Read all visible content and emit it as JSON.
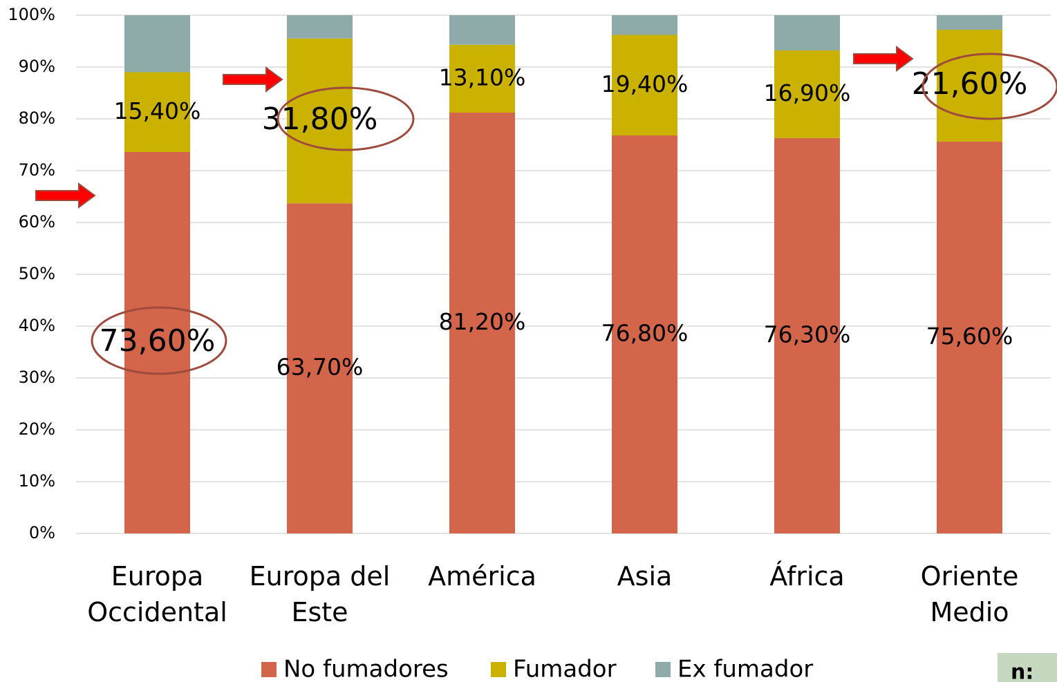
{
  "chart_data": {
    "type": "stacked-bar",
    "categories": [
      "Europa\nOccidental",
      "Europa del\nEste",
      "América",
      "Asia",
      "África",
      "Oriente\nMedio"
    ],
    "series": [
      {
        "name": "No fumadores",
        "color": "#d2654a",
        "values": [
          73.6,
          63.7,
          81.2,
          76.8,
          76.3,
          75.6
        ],
        "value_labels": [
          "73,60%",
          "63,70%",
          "81,20%",
          "76,80%",
          "76,30%",
          "75,60%"
        ]
      },
      {
        "name": "Fumador",
        "color": "#ccb200",
        "values": [
          15.4,
          31.8,
          13.1,
          19.4,
          16.9,
          21.6
        ],
        "value_labels": [
          "15,40%",
          "31,80%",
          "13,10%",
          "19,40%",
          "16,90%",
          "21,60%"
        ]
      },
      {
        "name": "Ex fumador",
        "color": "#8eaaa9",
        "values": [
          11.0,
          4.5,
          5.7,
          3.8,
          6.8,
          2.8
        ]
      }
    ],
    "ylim": [
      0,
      100
    ],
    "yticks": [
      {
        "value": 0,
        "label": "0%"
      },
      {
        "value": 10,
        "label": "10%"
      },
      {
        "value": 20,
        "label": "20%"
      },
      {
        "value": 30,
        "label": "30%"
      },
      {
        "value": 40,
        "label": "40%"
      },
      {
        "value": 50,
        "label": "50%"
      },
      {
        "value": 60,
        "label": "60%"
      },
      {
        "value": 70,
        "label": "70%"
      },
      {
        "value": 80,
        "label": "80%"
      },
      {
        "value": 90,
        "label": "90%"
      },
      {
        "value": 100,
        "label": "100%"
      }
    ],
    "grid": true,
    "note": "n:"
  }
}
